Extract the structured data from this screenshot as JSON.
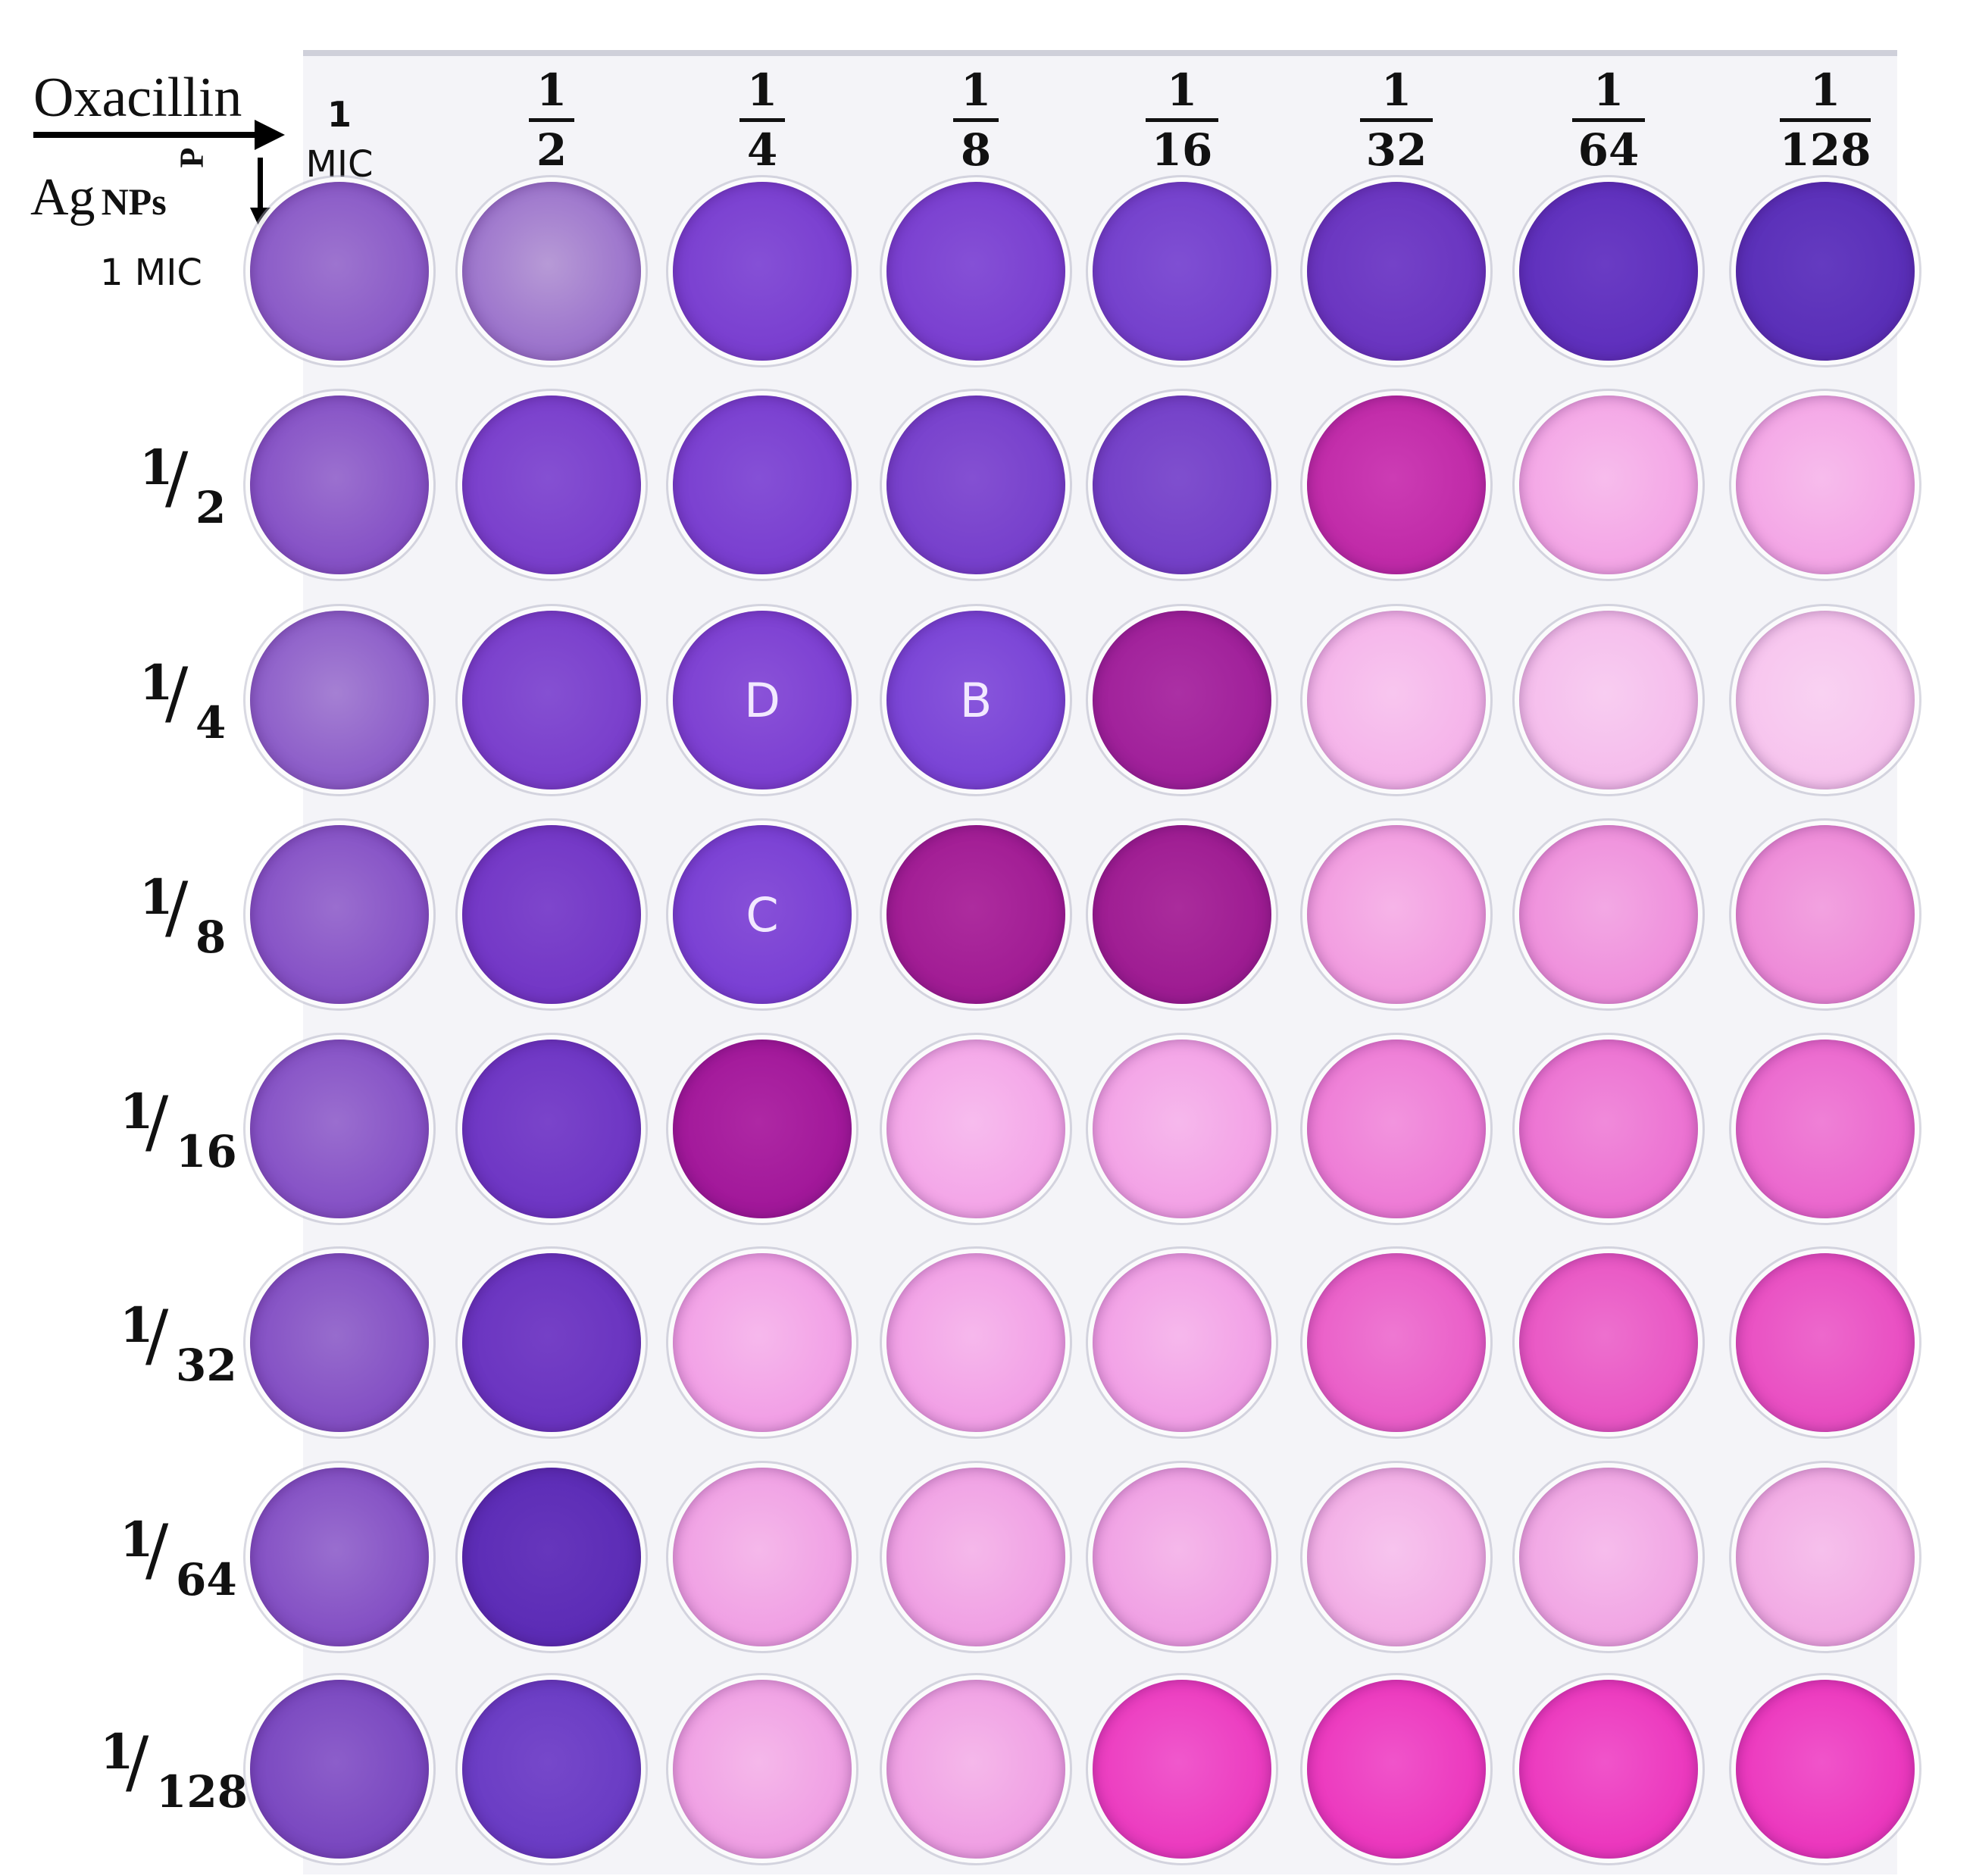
{
  "figure": {
    "oxacillin_label": "Oxacillin",
    "agnps_label_main": "Ag",
    "agnps_label_sub": "NPs",
    "corner_mark": "P"
  },
  "columns": [
    {
      "type": "plain",
      "num": "1",
      "den": "MIC"
    },
    {
      "type": "frac",
      "num": "1",
      "den": "2"
    },
    {
      "type": "frac",
      "num": "1",
      "den": "4"
    },
    {
      "type": "frac",
      "num": "1",
      "den": "8"
    },
    {
      "type": "frac",
      "num": "1",
      "den": "16"
    },
    {
      "type": "frac",
      "num": "1",
      "den": "32"
    },
    {
      "type": "frac",
      "num": "1",
      "den": "64"
    },
    {
      "type": "frac",
      "num": "1",
      "den": "128"
    }
  ],
  "rows": [
    {
      "type": "plain",
      "text": "1 MIC"
    },
    {
      "type": "frac",
      "num": "1",
      "slash": "/",
      "den": "2"
    },
    {
      "type": "frac",
      "num": "1",
      "slash": "/",
      "den": "4"
    },
    {
      "type": "frac",
      "num": "1",
      "slash": "/",
      "den": "8"
    },
    {
      "type": "frac",
      "num": "1",
      "slash": "/",
      "den": "16"
    },
    {
      "type": "frac",
      "num": "1",
      "slash": "/",
      "den": "32"
    },
    {
      "type": "frac",
      "num": "1",
      "slash": "/",
      "den": "64"
    },
    {
      "type": "frac",
      "num": "1",
      "slash": "/",
      "den": "128"
    }
  ],
  "wells": [
    [
      {
        "color": "#8a5ac7",
        "center": "#9d74cf"
      },
      {
        "color": "#9c74cc",
        "center": "#b79ad6"
      },
      {
        "color": "#7a3fd0",
        "center": "#8550d6"
      },
      {
        "color": "#7a3fd0",
        "center": "#8550d6"
      },
      {
        "color": "#7440cc",
        "center": "#7f4fd3"
      },
      {
        "color": "#6a35c0",
        "center": "#7442c8"
      },
      {
        "color": "#5f30bd",
        "center": "#6a3cc4"
      },
      {
        "color": "#5a2fb8",
        "center": "#643bc0"
      }
    ],
    [
      {
        "color": "#8652c6",
        "center": "#9b70cf"
      },
      {
        "color": "#7a3fcc",
        "center": "#8550d2"
      },
      {
        "color": "#7a3fd0",
        "center": "#8550d6"
      },
      {
        "color": "#7740cc",
        "center": "#8450d2"
      },
      {
        "color": "#7440c8",
        "center": "#7f4fce"
      },
      {
        "color": "#c02aa8",
        "center": "#cc3cb4"
      },
      {
        "color": "#f4a6e6",
        "center": "#f7bcec"
      },
      {
        "color": "#f4a6e6",
        "center": "#f7bcec"
      }
    ],
    [
      {
        "color": "#8d5ec9",
        "center": "#a580d3"
      },
      {
        "color": "#7a3fcc",
        "center": "#8550d2"
      },
      {
        "color": "#7d40d2",
        "center": "#8a52d8",
        "letter": "D"
      },
      {
        "color": "#7a44d6",
        "center": "#8856dc",
        "letter": "B"
      },
      {
        "color": "#a0209a",
        "center": "#ab30a4"
      },
      {
        "color": "#f5b4ea",
        "center": "#f8c6ef"
      },
      {
        "color": "#f5bdec",
        "center": "#f8cdf1"
      },
      {
        "color": "#f7c4ee",
        "center": "#f9d2f2"
      }
    ],
    [
      {
        "color": "#8652c6",
        "center": "#9a6ecf"
      },
      {
        "color": "#7337c6",
        "center": "#7e46cc"
      },
      {
        "color": "#7a40d4",
        "center": "#8750d8",
        "letter": "C"
      },
      {
        "color": "#a11c94",
        "center": "#ad2c9e"
      },
      {
        "color": "#9e1c92",
        "center": "#aa2c9c"
      },
      {
        "color": "#f29ce0",
        "center": "#f6b4e8"
      },
      {
        "color": "#ef90dc",
        "center": "#f3a8e4"
      },
      {
        "color": "#ee8ad8",
        "center": "#f2a2e0"
      }
    ],
    [
      {
        "color": "#8652c6",
        "center": "#9a6ecf"
      },
      {
        "color": "#6e36c4",
        "center": "#7a44ca"
      },
      {
        "color": "#a2189a",
        "center": "#ae28a4"
      },
      {
        "color": "#f4a6e8",
        "center": "#f7bcee"
      },
      {
        "color": "#f3a2e6",
        "center": "#f6b8ec"
      },
      {
        "color": "#ee7cd6",
        "center": "#f294de"
      },
      {
        "color": "#ec72d2",
        "center": "#f08ada"
      },
      {
        "color": "#eb68ce",
        "center": "#ef80d6"
      }
    ],
    [
      {
        "color": "#8450c4",
        "center": "#976ccd"
      },
      {
        "color": "#6a34c0",
        "center": "#7540c6"
      },
      {
        "color": "#f2a0e6",
        "center": "#f6b8ec"
      },
      {
        "color": "#f2a0e6",
        "center": "#f6b8ec"
      },
      {
        "color": "#f2a0e6",
        "center": "#f6b8ec"
      },
      {
        "color": "#ea5ec8",
        "center": "#ee78d2"
      },
      {
        "color": "#e956c4",
        "center": "#ed70ce"
      },
      {
        "color": "#e94ec2",
        "center": "#ed68cc"
      }
    ],
    [
      {
        "color": "#8450c4",
        "center": "#996ecf"
      },
      {
        "color": "#5c2cb6",
        "center": "#6636bc"
      },
      {
        "color": "#f0a0e4",
        "center": "#f5b8ea"
      },
      {
        "color": "#f0a0e4",
        "center": "#f5b8ea"
      },
      {
        "color": "#f0a0e4",
        "center": "#f5b8ea"
      },
      {
        "color": "#f3aee6",
        "center": "#f7c4ee"
      },
      {
        "color": "#f1a6e4",
        "center": "#f6bcec"
      },
      {
        "color": "#f2aae4",
        "center": "#f6c0ec"
      }
    ],
    [
      {
        "color": "#7a48c0",
        "center": "#8c5eca"
      },
      {
        "color": "#6a3cc4",
        "center": "#7648ca"
      },
      {
        "color": "#f0a0e4",
        "center": "#f5b8ea"
      },
      {
        "color": "#f0a0e4",
        "center": "#f5b8ea"
      },
      {
        "color": "#ec3cc0",
        "center": "#f058cc"
      },
      {
        "color": "#ec38be",
        "center": "#f054ca"
      },
      {
        "color": "#ec38be",
        "center": "#f054ca"
      },
      {
        "color": "#ec38be",
        "center": "#f054ca"
      }
    ]
  ]
}
